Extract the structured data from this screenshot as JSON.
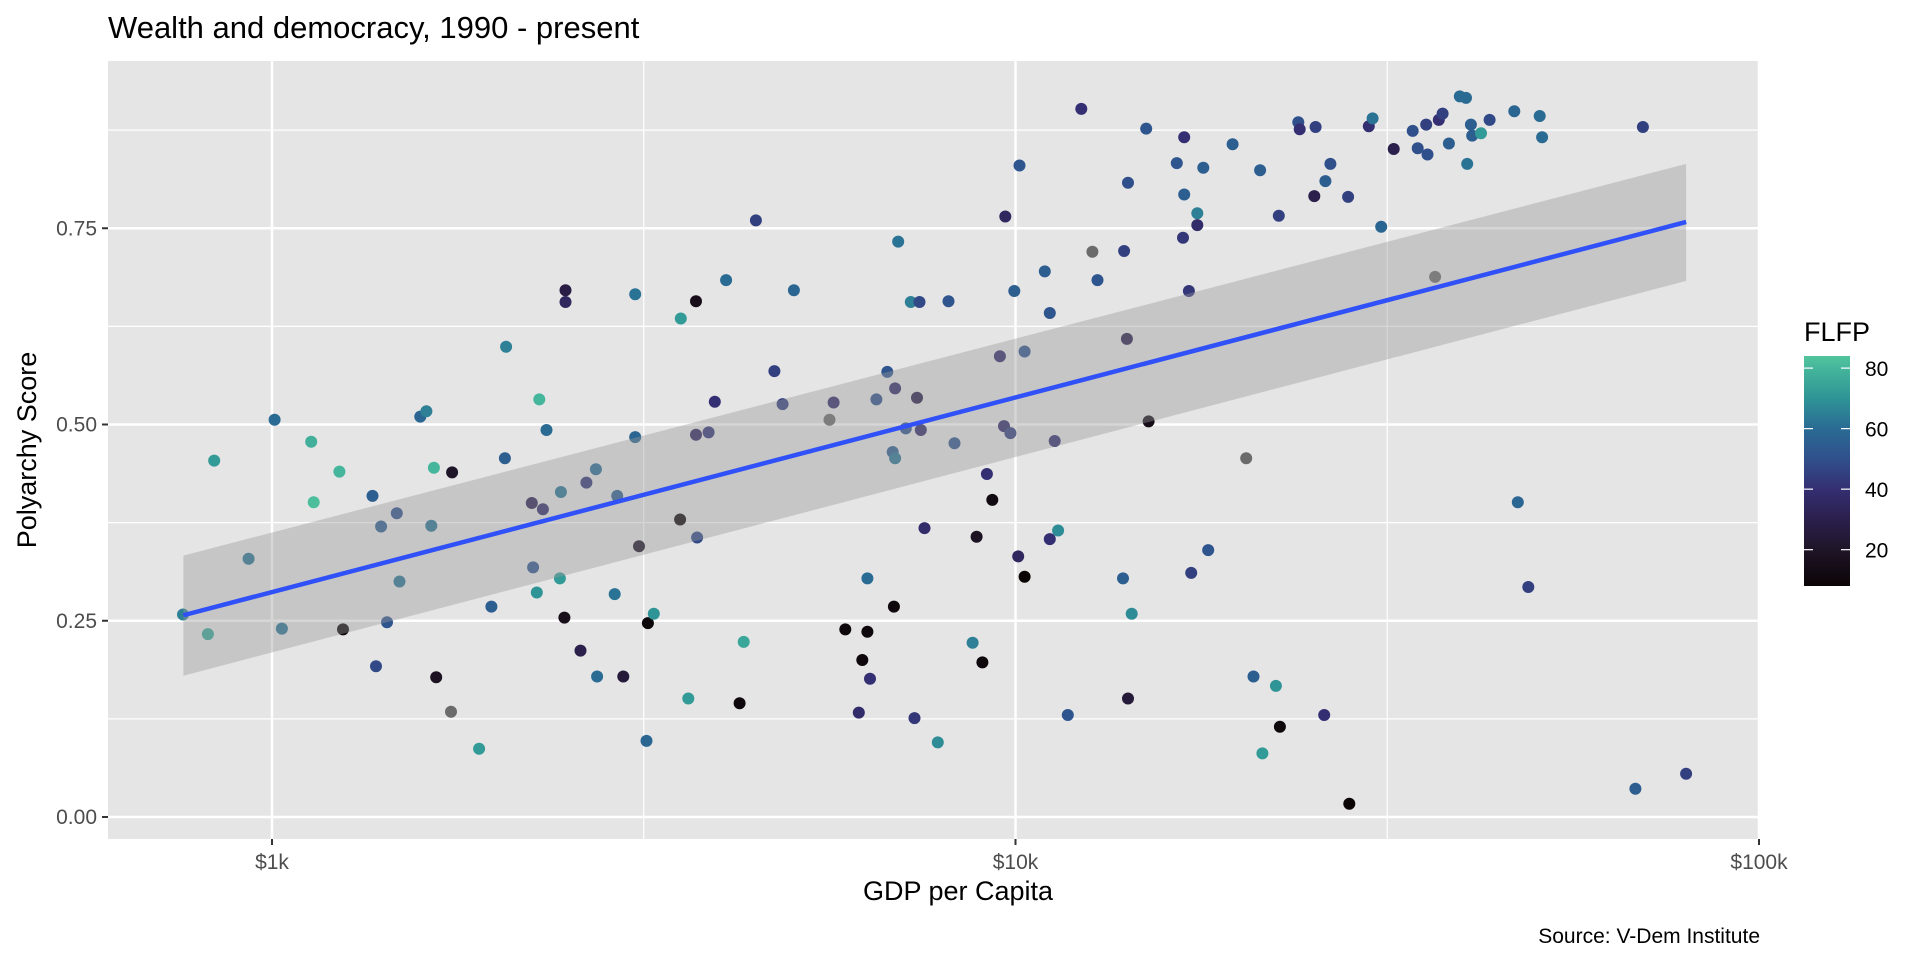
{
  "chart_data": {
    "type": "scatter",
    "title": "Wealth and democracy, 1990 - present",
    "xlabel": "GDP per Capita",
    "ylabel": "Polyarchy Score",
    "caption": "Source: V-Dem Institute",
    "x_scale": "log10",
    "xlim": [
      600,
      100000
    ],
    "ylim": [
      -0.03,
      0.955
    ],
    "x_ticks": [
      {
        "value": 1000,
        "label": "$1k"
      },
      {
        "value": 10000,
        "label": "$10k"
      },
      {
        "value": 100000,
        "label": "$100k"
      }
    ],
    "x_minor_ticks": [
      3162,
      31623
    ],
    "y_ticks": [
      {
        "value": 0.0,
        "label": "0.00"
      },
      {
        "value": 0.25,
        "label": "0.25"
      },
      {
        "value": 0.5,
        "label": "0.50"
      },
      {
        "value": 0.75,
        "label": "0.75"
      }
    ],
    "y_minor_ticks": [
      0.125,
      0.375,
      0.625,
      0.875
    ],
    "grid": true,
    "legend": {
      "title": "FLFP",
      "placement": "right",
      "type": "colorbar",
      "range": [
        8,
        84
      ],
      "ticks": [
        {
          "value": 20,
          "label": "20"
        },
        {
          "value": 40,
          "label": "40"
        },
        {
          "value": 60,
          "label": "60"
        },
        {
          "value": 80,
          "label": "80"
        }
      ],
      "colors": [
        {
          "value": 8,
          "color": "#0b0405"
        },
        {
          "value": 20,
          "color": "#1f1528"
        },
        {
          "value": 30,
          "color": "#2b1f4c"
        },
        {
          "value": 40,
          "color": "#342f72"
        },
        {
          "value": 50,
          "color": "#30508c"
        },
        {
          "value": 60,
          "color": "#2a6b94"
        },
        {
          "value": 70,
          "color": "#2f9496"
        },
        {
          "value": 80,
          "color": "#45b69b"
        },
        {
          "value": 84,
          "color": "#52c59d"
        }
      ],
      "na_color": "#6b6b6b"
    },
    "trend": {
      "type": "lm",
      "color": "#3050f8",
      "ribbon_color": "#bdbdbd",
      "x": [
        760,
        79800
      ],
      "y": [
        0.257,
        0.758
      ],
      "ci_lower": [
        0.18,
        0.683
      ],
      "ci_upper": [
        0.333,
        0.832
      ]
    },
    "points": [
      [
        759,
        0.258,
        65
      ],
      [
        820,
        0.233,
        75
      ],
      [
        836,
        0.454,
        72
      ],
      [
        930,
        0.329,
        62
      ],
      [
        1008,
        0.506,
        60
      ],
      [
        1031,
        0.24,
        62
      ],
      [
        1129,
        0.478,
        78
      ],
      [
        1138,
        0.401,
        82
      ],
      [
        1232,
        0.44,
        80
      ],
      [
        1246,
        0.239,
        10
      ],
      [
        1365,
        0.409,
        55
      ],
      [
        1380,
        0.192,
        48
      ],
      [
        1402,
        0.37,
        55
      ],
      [
        1428,
        0.248,
        52
      ],
      [
        1472,
        0.387,
        50
      ],
      [
        1484,
        0.3,
        62
      ],
      [
        1583,
        0.51,
        58
      ],
      [
        1613,
        0.517,
        65
      ],
      [
        1638,
        0.371,
        62
      ],
      [
        1651,
        0.445,
        80
      ],
      [
        1663,
        0.178,
        18
      ],
      [
        1741,
        0.134,
        null
      ],
      [
        1747,
        0.439,
        20
      ],
      [
        1899,
        0.087,
        72
      ],
      [
        1973,
        0.268,
        55
      ],
      [
        2057,
        0.457,
        55
      ],
      [
        2065,
        0.599,
        65
      ],
      [
        2236,
        0.4,
        32
      ],
      [
        2245,
        0.318,
        52
      ],
      [
        2271,
        0.286,
        70
      ],
      [
        2288,
        0.532,
        80
      ],
      [
        2314,
        0.392,
        38
      ],
      [
        2340,
        0.493,
        60
      ],
      [
        2439,
        0.304,
        72
      ],
      [
        2447,
        0.414,
        62
      ],
      [
        2473,
        0.254,
        15
      ],
      [
        2482,
        0.671,
        28
      ],
      [
        2482,
        0.656,
        35
      ],
      [
        2600,
        0.212,
        30
      ],
      [
        2648,
        0.426,
        42
      ],
      [
        2727,
        0.443,
        60
      ],
      [
        2737,
        0.179,
        60
      ],
      [
        2890,
        0.284,
        62
      ],
      [
        2913,
        0.409,
        55
      ],
      [
        2968,
        0.179,
        25
      ],
      [
        3080,
        0.484,
        58
      ],
      [
        3080,
        0.666,
        62
      ],
      [
        3116,
        0.345,
        20
      ],
      [
        3189,
        0.097,
        58
      ],
      [
        3203,
        0.247,
        10
      ],
      [
        3262,
        0.259,
        70
      ],
      [
        3539,
        0.379,
        10
      ],
      [
        3547,
        0.635,
        72
      ],
      [
        3630,
        0.151,
        72
      ],
      [
        3718,
        0.657,
        15
      ],
      [
        3718,
        0.487,
        35
      ],
      [
        3730,
        0.356,
        48
      ],
      [
        3866,
        0.49,
        42
      ],
      [
        3941,
        0.529,
        40
      ],
      [
        4081,
        0.684,
        60
      ],
      [
        4255,
        0.145,
        10
      ],
      [
        4310,
        0.223,
        75
      ],
      [
        4475,
        0.76,
        45
      ],
      [
        4740,
        0.568,
        45
      ],
      [
        4862,
        0.526,
        45
      ],
      [
        5035,
        0.671,
        58
      ],
      [
        5621,
        0.506,
        null
      ],
      [
        5693,
        0.528,
        38
      ],
      [
        5904,
        0.239,
        10
      ],
      [
        6155,
        0.133,
        38
      ],
      [
        6223,
        0.2,
        10
      ],
      [
        6321,
        0.236,
        10
      ],
      [
        6321,
        0.304,
        60
      ],
      [
        6372,
        0.176,
        40
      ],
      [
        6500,
        0.532,
        50
      ],
      [
        6724,
        0.567,
        52
      ],
      [
        6836,
        0.465,
        55
      ],
      [
        6861,
        0.268,
        10
      ],
      [
        6888,
        0.546,
        38
      ],
      [
        6888,
        0.457,
        62
      ],
      [
        6955,
        0.733,
        62
      ],
      [
        7120,
        0.495,
        52
      ],
      [
        7231,
        0.656,
        65
      ],
      [
        7314,
        0.126,
        42
      ],
      [
        7371,
        0.534,
        30
      ],
      [
        7428,
        0.656,
        48
      ],
      [
        7457,
        0.493,
        38
      ],
      [
        7543,
        0.368,
        38
      ],
      [
        7862,
        0.095,
        68
      ],
      [
        8126,
        0.657,
        52
      ],
      [
        8279,
        0.476,
        52
      ],
      [
        8756,
        0.222,
        65
      ],
      [
        8864,
        0.357,
        18
      ],
      [
        9026,
        0.197,
        10
      ],
      [
        9151,
        0.437,
        40
      ],
      [
        9306,
        0.404,
        12
      ],
      [
        9528,
        0.587,
        38
      ],
      [
        9651,
        0.498,
        38
      ],
      [
        9689,
        0.765,
        35
      ],
      [
        9842,
        0.489,
        45
      ],
      [
        9962,
        0.67,
        55
      ],
      [
        10085,
        0.332,
        35
      ],
      [
        10124,
        0.83,
        52
      ],
      [
        10285,
        0.593,
        52
      ],
      [
        10285,
        0.306,
        8
      ],
      [
        10950,
        0.695,
        55
      ],
      [
        11120,
        0.354,
        40
      ],
      [
        11120,
        0.642,
        52
      ],
      [
        11290,
        0.479,
        40
      ],
      [
        11410,
        0.365,
        68
      ],
      [
        11760,
        0.13,
        52
      ],
      [
        12260,
        0.902,
        40
      ],
      [
        12690,
        0.72,
        null
      ],
      [
        12890,
        0.684,
        52
      ],
      [
        13950,
        0.304,
        55
      ],
      [
        14000,
        0.721,
        45
      ],
      [
        14120,
        0.609,
        30
      ],
      [
        14170,
        0.808,
        50
      ],
      [
        14170,
        0.151,
        25
      ],
      [
        14330,
        0.259,
        68
      ],
      [
        14990,
        0.877,
        52
      ],
      [
        15100,
        0.504,
        15
      ],
      [
        16480,
        0.833,
        52
      ],
      [
        16800,
        0.738,
        42
      ],
      [
        16860,
        0.866,
        40
      ],
      [
        16860,
        0.793,
        55
      ],
      [
        17110,
        0.67,
        42
      ],
      [
        17230,
        0.311,
        45
      ],
      [
        17560,
        0.769,
        65
      ],
      [
        17560,
        0.754,
        38
      ],
      [
        17890,
        0.827,
        55
      ],
      [
        18160,
        0.34,
        52
      ],
      [
        19590,
        0.857,
        55
      ],
      [
        20430,
        0.457,
        null
      ],
      [
        20900,
        0.179,
        55
      ],
      [
        21330,
        0.824,
        55
      ],
      [
        21480,
        0.081,
        72
      ],
      [
        22400,
        0.167,
        70
      ],
      [
        22600,
        0.766,
        45
      ],
      [
        22680,
        0.115,
        10
      ],
      [
        24010,
        0.885,
        50
      ],
      [
        24110,
        0.876,
        40
      ],
      [
        25230,
        0.791,
        30
      ],
      [
        25330,
        0.879,
        45
      ],
      [
        26010,
        0.13,
        40
      ],
      [
        26110,
        0.81,
        55
      ],
      [
        26520,
        0.832,
        50
      ],
      [
        28010,
        0.79,
        45
      ],
      [
        28120,
        0.017,
        8
      ],
      [
        29870,
        0.88,
        40
      ],
      [
        30220,
        0.89,
        62
      ],
      [
        31040,
        0.752,
        58
      ],
      [
        32260,
        0.851,
        30
      ],
      [
        34220,
        0.874,
        50
      ],
      [
        34750,
        0.852,
        50
      ],
      [
        35680,
        0.882,
        45
      ],
      [
        35820,
        0.844,
        50
      ],
      [
        36670,
        0.688,
        null
      ],
      [
        37100,
        0.888,
        40
      ],
      [
        37530,
        0.896,
        45
      ],
      [
        38280,
        0.858,
        55
      ],
      [
        39590,
        0.918,
        60
      ],
      [
        40360,
        0.916,
        60
      ],
      [
        40510,
        0.832,
        62
      ],
      [
        40980,
        0.882,
        55
      ],
      [
        41140,
        0.868,
        55
      ],
      [
        42270,
        0.871,
        72
      ],
      [
        43420,
        0.888,
        48
      ],
      [
        46870,
        0.899,
        58
      ],
      [
        47380,
        0.401,
        58
      ],
      [
        48940,
        0.293,
        45
      ],
      [
        50700,
        0.893,
        60
      ],
      [
        51090,
        0.866,
        60
      ],
      [
        68200,
        0.036,
        55
      ],
      [
        69800,
        0.879,
        45
      ],
      [
        79800,
        0.055,
        45
      ]
    ]
  }
}
